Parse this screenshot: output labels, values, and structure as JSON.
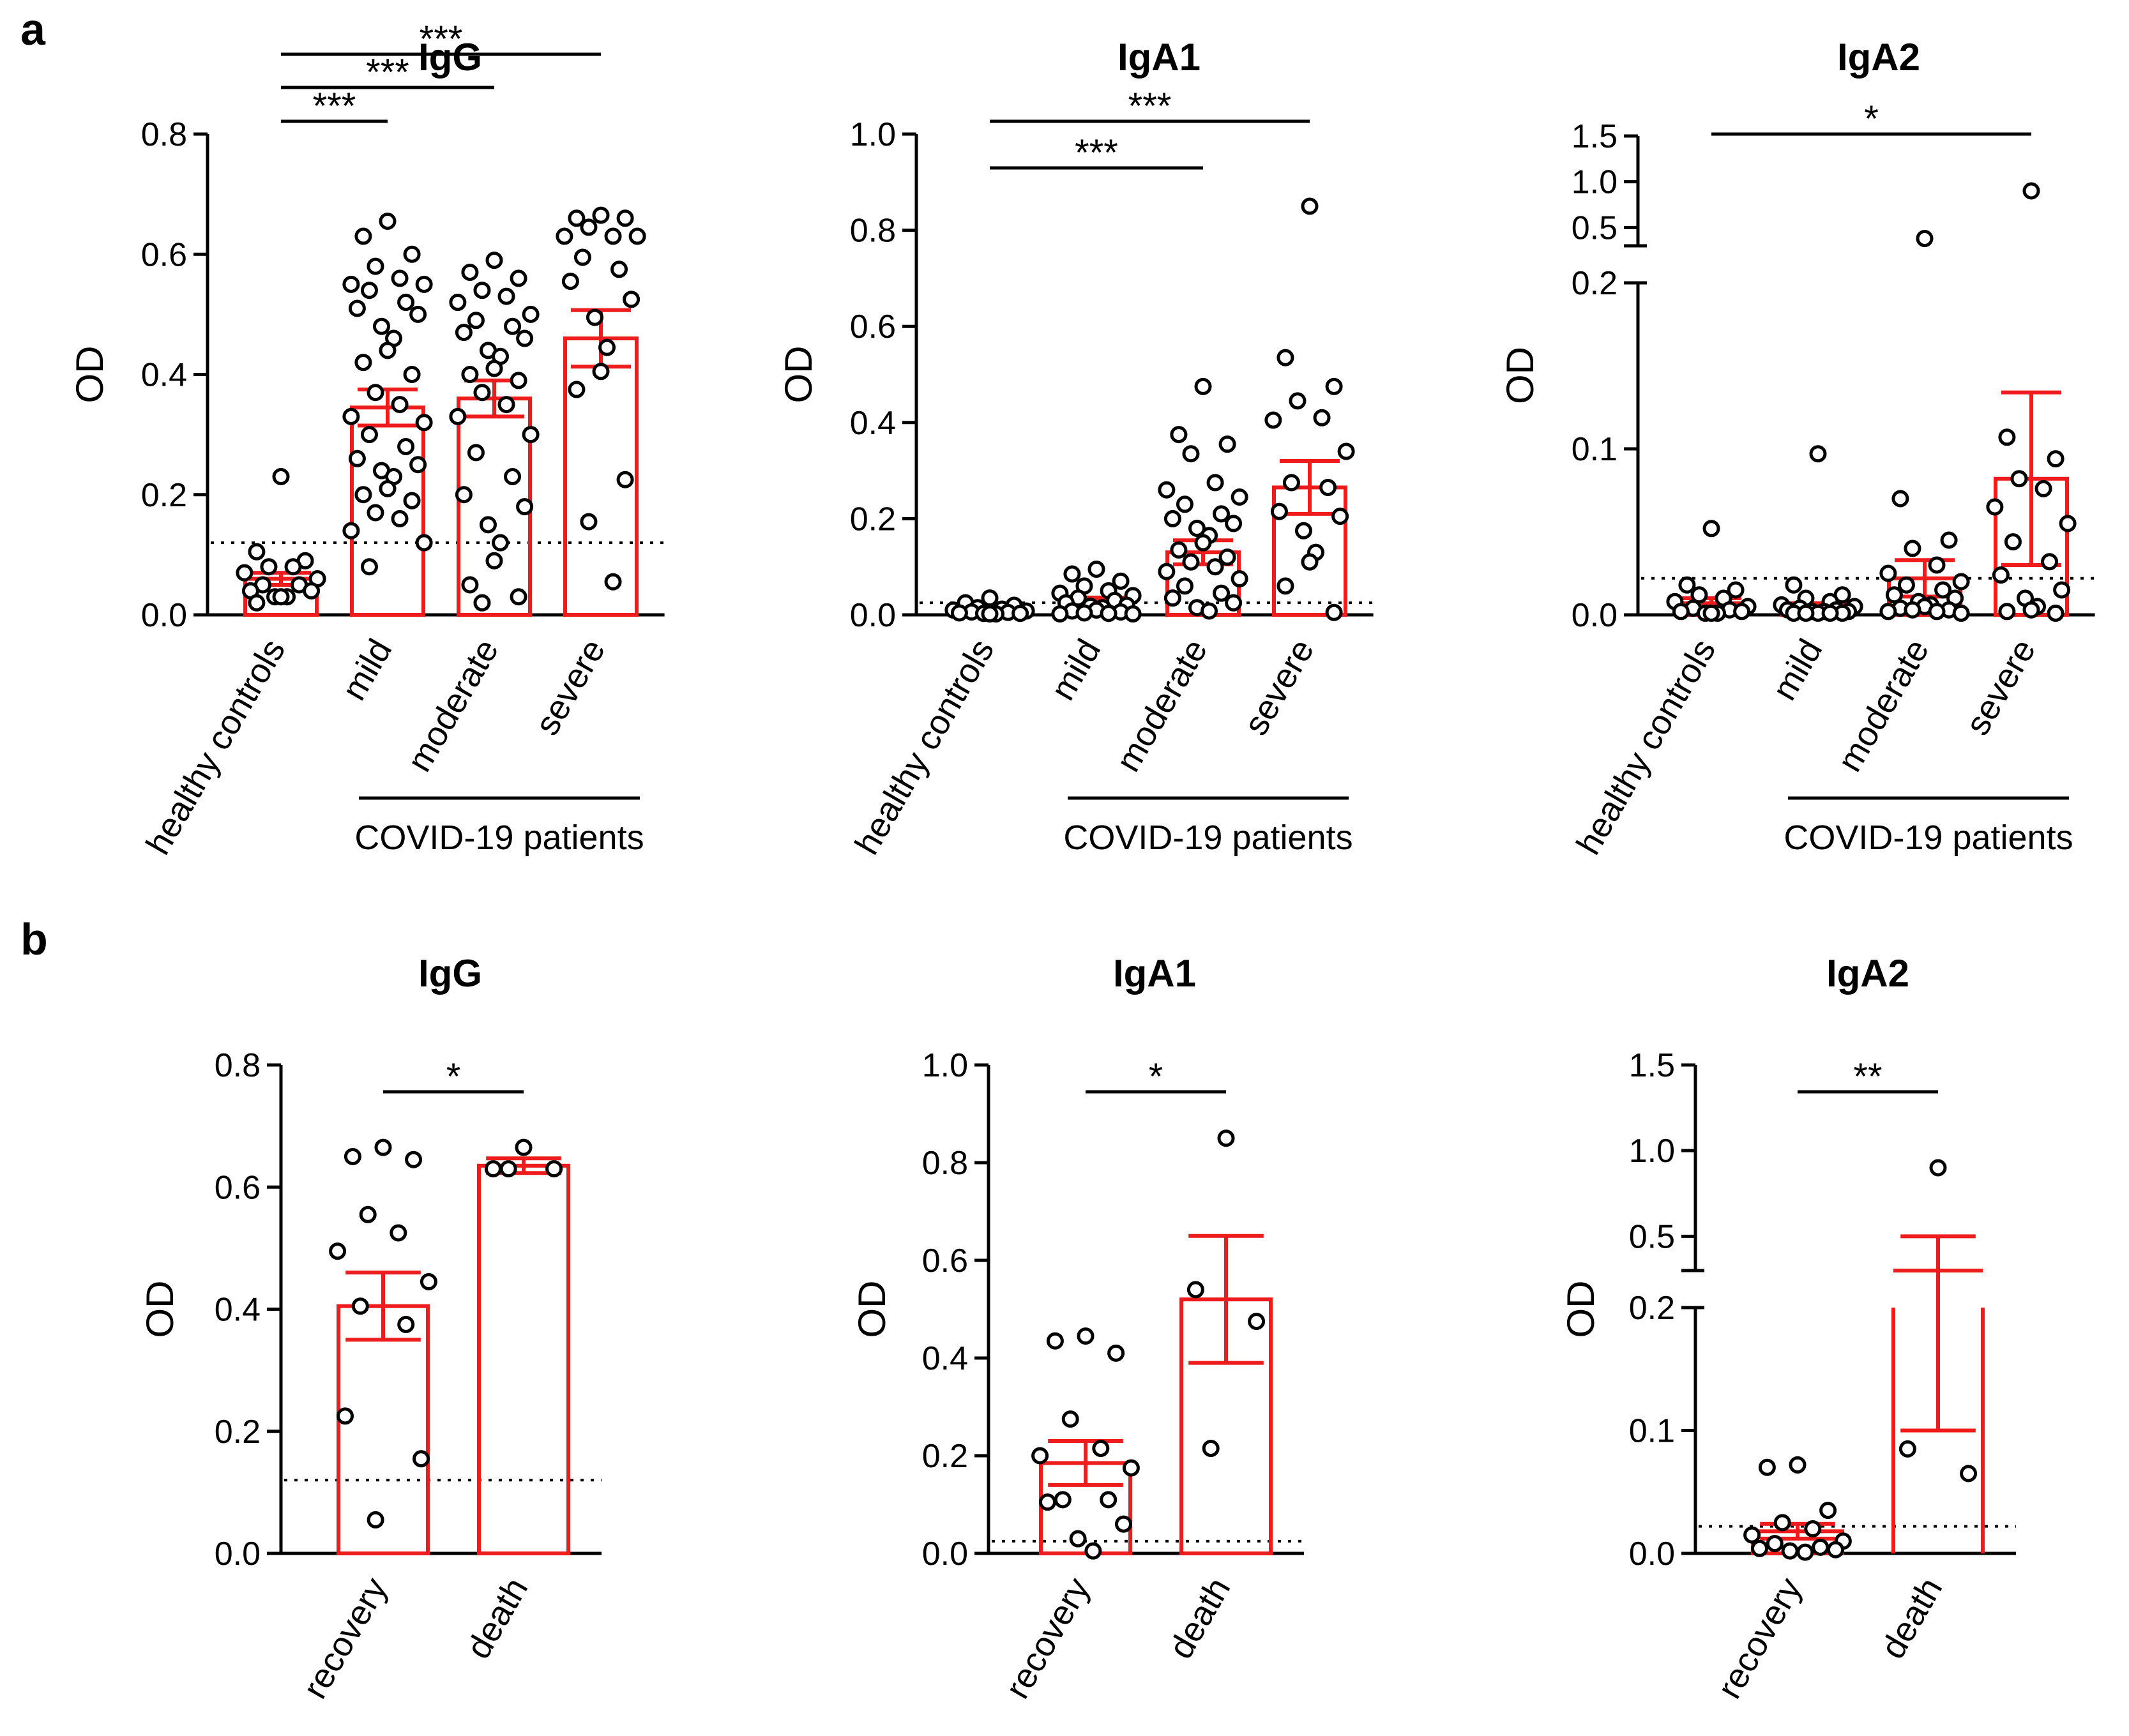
{
  "figure": {
    "panel_a_label": "a",
    "panel_b_label": "b",
    "group_label": "COVID-19 patients"
  },
  "chart_data": [
    {
      "panel": "a",
      "type": "bar",
      "title": "IgG",
      "ylabel": "OD",
      "ylim": [
        0,
        0.8
      ],
      "yticks": [
        "0.0",
        "0.2",
        "0.4",
        "0.6",
        "0.8"
      ],
      "cutoff": 0.12,
      "categories": [
        "healthy controls",
        "mild",
        "moderate",
        "severe"
      ],
      "group": {
        "label": "COVID-19 patients",
        "from": 1,
        "to": 3
      },
      "means": [
        0.06,
        0.345,
        0.36,
        0.46
      ],
      "sem": [
        0.01,
        0.03,
        0.03,
        0.047
      ],
      "points": [
        [
          0.23,
          0.105,
          0.09,
          0.08,
          0.08,
          0.07,
          0.06,
          0.05,
          0.05,
          0.04,
          0.04,
          0.03,
          0.03,
          0.03,
          0.02
        ],
        [
          0.655,
          0.63,
          0.6,
          0.58,
          0.56,
          0.55,
          0.55,
          0.54,
          0.52,
          0.51,
          0.5,
          0.48,
          0.46,
          0.44,
          0.42,
          0.4,
          0.37,
          0.35,
          0.33,
          0.32,
          0.3,
          0.28,
          0.26,
          0.25,
          0.24,
          0.23,
          0.21,
          0.2,
          0.19,
          0.17,
          0.16,
          0.14,
          0.12,
          0.08
        ],
        [
          0.59,
          0.57,
          0.56,
          0.54,
          0.53,
          0.52,
          0.5,
          0.49,
          0.48,
          0.47,
          0.46,
          0.44,
          0.43,
          0.41,
          0.4,
          0.39,
          0.37,
          0.35,
          0.33,
          0.3,
          0.27,
          0.23,
          0.2,
          0.18,
          0.15,
          0.12,
          0.09,
          0.05,
          0.03,
          0.02
        ],
        [
          0.665,
          0.66,
          0.66,
          0.645,
          0.63,
          0.63,
          0.63,
          0.595,
          0.575,
          0.555,
          0.525,
          0.495,
          0.445,
          0.405,
          0.375,
          0.225,
          0.155,
          0.055
        ]
      ],
      "sig_bars": [
        {
          "from": 0,
          "to": 1,
          "label": "***"
        },
        {
          "from": 0,
          "to": 2,
          "label": "***"
        },
        {
          "from": 0,
          "to": 3,
          "label": "***"
        }
      ]
    },
    {
      "panel": "a",
      "type": "bar",
      "title": "IgA1",
      "ylabel": "OD",
      "ylim": [
        0,
        1.0
      ],
      "yticks": [
        "0.0",
        "0.2",
        "0.4",
        "0.6",
        "0.8",
        "1.0"
      ],
      "cutoff": 0.025,
      "categories": [
        "healthy controls",
        "mild",
        "moderate",
        "severe"
      ],
      "group": {
        "label": "COVID-19 patients",
        "from": 1,
        "to": 3
      },
      "means": [
        0.008,
        0.03,
        0.13,
        0.265
      ],
      "sem": [
        0.003,
        0.006,
        0.025,
        0.055
      ],
      "points": [
        [
          0.035,
          0.025,
          0.02,
          0.015,
          0.012,
          0.01,
          0.008,
          0.006,
          0.005,
          0.004,
          0.003,
          0.003,
          0.002,
          0.002
        ],
        [
          0.095,
          0.085,
          0.07,
          0.06,
          0.05,
          0.045,
          0.04,
          0.035,
          0.03,
          0.025,
          0.02,
          0.018,
          0.015,
          0.01,
          0.008,
          0.006,
          0.004,
          0.003,
          0.002,
          0.002
        ],
        [
          0.475,
          0.375,
          0.355,
          0.335,
          0.275,
          0.26,
          0.245,
          0.23,
          0.21,
          0.2,
          0.19,
          0.18,
          0.165,
          0.15,
          0.135,
          0.12,
          0.11,
          0.1,
          0.09,
          0.075,
          0.06,
          0.045,
          0.035,
          0.025,
          0.015,
          0.008
        ],
        [
          0.85,
          0.535,
          0.475,
          0.445,
          0.41,
          0.405,
          0.34,
          0.275,
          0.265,
          0.215,
          0.205,
          0.175,
          0.13,
          0.11,
          0.06,
          0.005
        ]
      ],
      "sig_bars": [
        {
          "from": 0,
          "to": 2,
          "label": "***"
        },
        {
          "from": 0,
          "to": 3,
          "label": "***"
        }
      ]
    },
    {
      "panel": "a",
      "type": "bar",
      "title": "IgA2",
      "ylabel": "OD",
      "ylim": [
        0,
        1.5
      ],
      "axis_break": [
        0.2,
        0.3
      ],
      "yticks_low": [
        "0.0",
        "0.1",
        "0.2"
      ],
      "yticks_high": [
        "0.5",
        "1.0",
        "1.5"
      ],
      "cutoff": 0.022,
      "categories": [
        "healthy controls",
        "mild",
        "moderate",
        "severe"
      ],
      "group": {
        "label": "COVID-19 patients",
        "from": 1,
        "to": 3
      },
      "means": [
        0.007,
        0.005,
        0.022,
        0.082
      ],
      "sem": [
        0.003,
        0.002,
        0.011,
        0.052
      ],
      "points": [
        [
          0.052,
          0.018,
          0.015,
          0.012,
          0.01,
          0.008,
          0.005,
          0.004,
          0.003,
          0.002,
          0.002,
          0.001,
          0.001,
          0.001
        ],
        [
          0.097,
          0.018,
          0.012,
          0.01,
          0.008,
          0.006,
          0.005,
          0.004,
          0.003,
          0.003,
          0.002,
          0.002,
          0.002,
          0.001,
          0.001,
          0.001,
          0.001,
          0.001
        ],
        [
          0.38,
          0.07,
          0.045,
          0.04,
          0.03,
          0.025,
          0.02,
          0.018,
          0.015,
          0.012,
          0.01,
          0.008,
          0.006,
          0.005,
          0.004,
          0.003,
          0.003,
          0.002,
          0.002,
          0.001
        ],
        [
          0.9,
          0.107,
          0.094,
          0.082,
          0.076,
          0.065,
          0.055,
          0.044,
          0.032,
          0.024,
          0.015,
          0.01,
          0.005,
          0.003,
          0.002,
          0.001
        ]
      ],
      "sig_bars": [
        {
          "from": 0,
          "to": 3,
          "label": "*"
        }
      ]
    },
    {
      "panel": "b",
      "type": "bar",
      "title": "IgG",
      "ylabel": "OD",
      "ylim": [
        0,
        0.8
      ],
      "yticks": [
        "0.0",
        "0.2",
        "0.4",
        "0.6",
        "0.8"
      ],
      "cutoff": 0.12,
      "categories": [
        "recovery",
        "death"
      ],
      "means": [
        0.405,
        0.635
      ],
      "sem": [
        0.055,
        0.012
      ],
      "points": [
        [
          0.665,
          0.65,
          0.645,
          0.555,
          0.525,
          0.495,
          0.445,
          0.405,
          0.375,
          0.225,
          0.155,
          0.055
        ],
        [
          0.665,
          0.63,
          0.63,
          0.63
        ]
      ],
      "sig_bars": [
        {
          "from": 0,
          "to": 1,
          "label": "*"
        }
      ]
    },
    {
      "panel": "b",
      "type": "bar",
      "title": "IgA1",
      "ylabel": "OD",
      "ylim": [
        0,
        1.0
      ],
      "yticks": [
        "0.0",
        "0.2",
        "0.4",
        "0.6",
        "0.8",
        "1.0"
      ],
      "cutoff": 0.025,
      "categories": [
        "recovery",
        "death"
      ],
      "means": [
        0.185,
        0.52
      ],
      "sem": [
        0.045,
        0.13
      ],
      "points": [
        [
          0.445,
          0.435,
          0.41,
          0.275,
          0.215,
          0.2,
          0.175,
          0.11,
          0.11,
          0.105,
          0.06,
          0.03,
          0.005
        ],
        [
          0.85,
          0.54,
          0.475,
          0.215
        ]
      ],
      "sig_bars": [
        {
          "from": 0,
          "to": 1,
          "label": "*"
        }
      ]
    },
    {
      "panel": "b",
      "type": "bar",
      "title": "IgA2",
      "ylabel": "OD",
      "ylim": [
        0,
        1.5
      ],
      "axis_break": [
        0.2,
        0.3
      ],
      "yticks_low": [
        "0.0",
        "0.1",
        "0.2"
      ],
      "yticks_high": [
        "0.5",
        "1.0",
        "1.5"
      ],
      "cutoff": 0.022,
      "categories": [
        "recovery",
        "death"
      ],
      "means": [
        0.018,
        0.3
      ],
      "sem": [
        0.006,
        0.2
      ],
      "points": [
        [
          0.072,
          0.07,
          0.035,
          0.025,
          0.02,
          0.015,
          0.01,
          0.008,
          0.005,
          0.004,
          0.003,
          0.002,
          0.001
        ],
        [
          0.9,
          0.085,
          0.065
        ]
      ],
      "sig_bars": [
        {
          "from": 0,
          "to": 1,
          "label": "**"
        }
      ]
    }
  ]
}
